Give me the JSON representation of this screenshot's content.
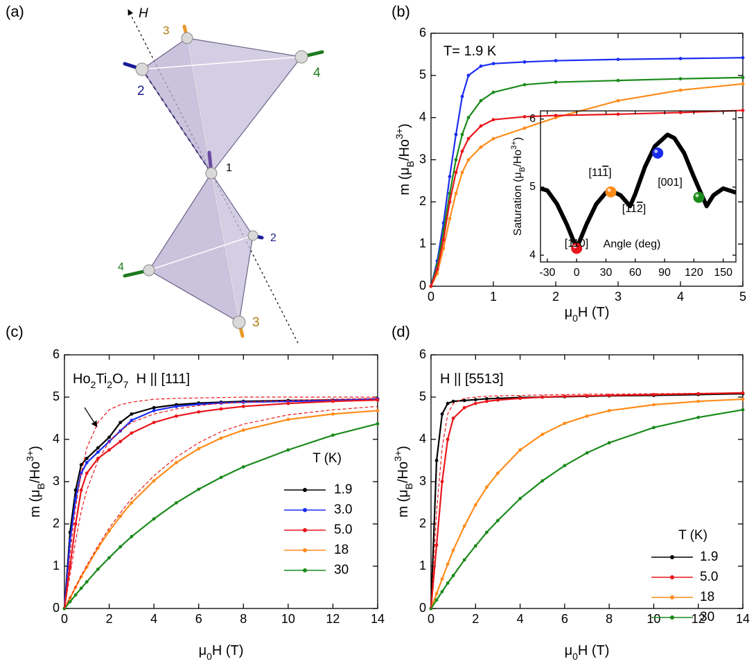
{
  "diagram": {
    "panel_label": "(a)",
    "field_label": "H",
    "site_labels": [
      "3",
      "2",
      "4",
      "1",
      "2",
      "4",
      "3"
    ]
  },
  "chart_data": [
    {
      "type": "line",
      "panel_label": "(b)",
      "annotation": [
        {
          "text": "T= 1.9 K"
        }
      ],
      "xlabel": [
        {
          "text": "μ"
        },
        {
          "text": "0",
          "sub": true
        },
        {
          "text": "H (T)"
        }
      ],
      "ylabel": [
        {
          "text": "m (μ"
        },
        {
          "text": "B",
          "sub": true
        },
        {
          "text": "/Ho"
        },
        {
          "text": "3+",
          "sup": true
        },
        {
          "text": ")"
        }
      ],
      "x": [
        0,
        0.1,
        0.2,
        0.3,
        0.4,
        0.5,
        0.6,
        0.8,
        1,
        1.5,
        2,
        3,
        4,
        5
      ],
      "xlim": [
        0,
        5
      ],
      "ylim": [
        0,
        6
      ],
      "xticks": [
        0,
        1,
        2,
        3,
        4,
        5
      ],
      "yticks": [
        0,
        1,
        2,
        3,
        4,
        5,
        6
      ],
      "markers": true,
      "series": [
        {
          "color": "#1b2cf0",
          "values": [
            0,
            0.6,
            1.5,
            2.6,
            3.6,
            4.5,
            5.0,
            5.22,
            5.28,
            5.32,
            5.35,
            5.38,
            5.4,
            5.42
          ]
        },
        {
          "color": "#1a8a1a",
          "values": [
            0,
            0.5,
            1.3,
            2.2,
            3.0,
            3.6,
            4.0,
            4.4,
            4.6,
            4.78,
            4.84,
            4.88,
            4.92,
            4.95
          ]
        },
        {
          "color": "#ff8c1a",
          "values": [
            0,
            0.3,
            0.9,
            1.6,
            2.2,
            2.7,
            3.0,
            3.3,
            3.5,
            3.75,
            4.0,
            4.4,
            4.65,
            4.8
          ]
        },
        {
          "color": "#e8161b",
          "values": [
            0,
            0.4,
            1.1,
            2.0,
            2.7,
            3.2,
            3.5,
            3.8,
            3.95,
            4.02,
            4.05,
            4.08,
            4.12,
            4.17
          ]
        }
      ]
    },
    {
      "type": "line",
      "inset": true,
      "xlabel": [
        {
          "text": "Angle (deg)"
        }
      ],
      "ylabel": [
        {
          "text": "Saturation (μ"
        },
        {
          "text": "B",
          "sub": true
        },
        {
          "text": "/Ho"
        },
        {
          "text": "3+",
          "sup": true
        },
        {
          "text": ")"
        }
      ],
      "x": [
        -37,
        -30,
        -20,
        -10,
        0,
        10,
        20,
        30,
        35,
        45,
        54.7,
        60,
        70,
        80,
        93,
        100,
        110,
        120,
        133,
        140,
        150,
        163
      ],
      "xlim": [
        -37,
        163
      ],
      "ylim": [
        3.9,
        6.12
      ],
      "xticks": [
        -30,
        0,
        30,
        60,
        90,
        120,
        150
      ],
      "yticks": [
        4,
        5,
        6
      ],
      "markers": false,
      "series": [
        {
          "color": "#000000",
          "values": [
            4.98,
            4.95,
            4.75,
            4.45,
            4.1,
            4.45,
            4.75,
            4.92,
            4.95,
            4.88,
            4.72,
            4.9,
            5.3,
            5.6,
            5.77,
            5.72,
            5.5,
            5.15,
            4.72,
            4.88,
            4.98,
            4.92
          ]
        }
      ],
      "points": {
        "x": [
          0,
          35,
          83,
          125
        ],
        "values": [
          4.1,
          4.93,
          5.5,
          4.85
        ],
        "colors": [
          "#e8161b",
          "#ff8c1a",
          "#1b2cf0",
          "#1a8a1a"
        ],
        "labels": [
          [
            {
              "text": "[110]"
            }
          ],
          [
            {
              "text": "[11"
            },
            {
              "text": "1",
              "overline": true
            },
            {
              "text": "]"
            }
          ],
          [
            {
              "text": "[001]"
            }
          ],
          [
            {
              "text": "[11"
            },
            {
              "text": "2",
              "overline": true
            },
            {
              "text": "]"
            }
          ]
        ]
      }
    },
    {
      "type": "line",
      "panel_label": "(c)",
      "annotation": [
        {
          "text": "Ho"
        },
        {
          "text": "2",
          "sub": true
        },
        {
          "text": "Ti"
        },
        {
          "text": "2",
          "sub": true
        },
        {
          "text": "O"
        },
        {
          "text": "7",
          "sub": true
        },
        {
          "text": "  H || [111]"
        }
      ],
      "xlabel": [
        {
          "text": "μ"
        },
        {
          "text": "0",
          "sub": true
        },
        {
          "text": "H (T)"
        }
      ],
      "ylabel": [
        {
          "text": "m (μ"
        },
        {
          "text": "B",
          "sub": true
        },
        {
          "text": "/Ho"
        },
        {
          "text": "3+",
          "sup": true
        },
        {
          "text": ")"
        }
      ],
      "x": [
        0,
        0.25,
        0.5,
        0.75,
        1,
        1.5,
        2,
        2.5,
        3,
        4,
        5,
        6,
        7,
        8,
        10,
        12,
        14
      ],
      "xlim": [
        0,
        14
      ],
      "ylim": [
        0,
        6
      ],
      "xticks": [
        0,
        2,
        4,
        6,
        8,
        10,
        12,
        14
      ],
      "yticks": [
        0,
        1,
        2,
        3,
        4,
        5,
        6
      ],
      "markers": true,
      "legend_title": "T (K)",
      "legend": "lower right",
      "series": [
        {
          "name": "1.9",
          "color": "#000000",
          "values": [
            0,
            1.8,
            2.8,
            3.4,
            3.55,
            3.8,
            4.05,
            4.4,
            4.6,
            4.75,
            4.82,
            4.86,
            4.88,
            4.9,
            4.92,
            4.93,
            4.95
          ]
        },
        {
          "name": "3.0",
          "color": "#1b2cf0",
          "values": [
            0,
            1.6,
            2.6,
            3.2,
            3.45,
            3.7,
            3.95,
            4.2,
            4.45,
            4.68,
            4.78,
            4.83,
            4.86,
            4.88,
            4.9,
            4.92,
            4.96
          ]
        },
        {
          "name": "5.0",
          "color": "#e8161b",
          "values": [
            0,
            1.0,
            2.0,
            2.8,
            3.2,
            3.55,
            3.75,
            3.95,
            4.15,
            4.4,
            4.55,
            4.65,
            4.72,
            4.78,
            4.85,
            4.9,
            4.93
          ]
        },
        {
          "name": "18",
          "color": "#ff8c1a",
          "values": [
            0,
            0.25,
            0.5,
            0.75,
            0.98,
            1.43,
            1.83,
            2.18,
            2.5,
            3.02,
            3.45,
            3.78,
            4.03,
            4.22,
            4.47,
            4.6,
            4.68
          ]
        },
        {
          "name": "30",
          "color": "#1a8a1a",
          "values": [
            0,
            0.16,
            0.32,
            0.48,
            0.63,
            0.93,
            1.2,
            1.46,
            1.7,
            2.12,
            2.5,
            2.82,
            3.1,
            3.35,
            3.75,
            4.1,
            4.37
          ]
        },
        {
          "color": "#e8161b",
          "dashed": true,
          "values": [
            0,
            1.3,
            2.4,
            3.2,
            3.8,
            4.4,
            4.7,
            4.82,
            4.88,
            4.95,
            4.97,
            4.98,
            4.99,
            5,
            5,
            5,
            5
          ]
        },
        {
          "color": "#e8161b",
          "dashed": true,
          "values": [
            0,
            0.8,
            1.6,
            2.3,
            2.8,
            3.5,
            3.95,
            4.2,
            4.4,
            4.6,
            4.72,
            4.8,
            4.85,
            4.88,
            4.92,
            4.95,
            4.97
          ]
        },
        {
          "color": "#e8161b",
          "dashed": true,
          "values": [
            0,
            0.26,
            0.52,
            0.78,
            1.02,
            1.48,
            1.9,
            2.26,
            2.6,
            3.14,
            3.58,
            3.92,
            4.18,
            4.36,
            4.58,
            4.7,
            4.78
          ]
        }
      ]
    },
    {
      "type": "line",
      "panel_label": "(d)",
      "annotation": [
        {
          "text": "H || [5513]"
        }
      ],
      "xlabel": [
        {
          "text": "μ"
        },
        {
          "text": "0",
          "sub": true
        },
        {
          "text": "H (T)"
        }
      ],
      "ylabel": [
        {
          "text": "m (μ"
        },
        {
          "text": "B",
          "sub": true
        },
        {
          "text": "/Ho"
        },
        {
          "text": "3+",
          "sup": true
        },
        {
          "text": ")"
        }
      ],
      "x": [
        0,
        0.25,
        0.5,
        0.75,
        1,
        1.5,
        2,
        2.5,
        3,
        4,
        5,
        6,
        7,
        8,
        10,
        12,
        14
      ],
      "xlim": [
        0,
        14
      ],
      "ylim": [
        0,
        6
      ],
      "xticks": [
        0,
        2,
        4,
        6,
        8,
        10,
        12,
        14
      ],
      "yticks": [
        0,
        1,
        2,
        3,
        4,
        5,
        6
      ],
      "markers": true,
      "legend_title": "T (K)",
      "legend": "lower right",
      "series": [
        {
          "name": "1.9",
          "color": "#000000",
          "values": [
            0,
            3.5,
            4.6,
            4.85,
            4.9,
            4.92,
            4.94,
            4.96,
            4.97,
            4.99,
            5.0,
            5.01,
            5.02,
            5.03,
            5.04,
            5.06,
            5.08
          ]
        },
        {
          "name": "5.0",
          "color": "#e8161b",
          "values": [
            0,
            1.5,
            3.0,
            4.0,
            4.5,
            4.75,
            4.85,
            4.9,
            4.93,
            4.97,
            5.0,
            5.02,
            5.03,
            5.04,
            5.06,
            5.08,
            5.1
          ]
        },
        {
          "name": "18",
          "color": "#ff8c1a",
          "values": [
            0,
            0.35,
            0.7,
            1.05,
            1.38,
            1.95,
            2.45,
            2.87,
            3.2,
            3.75,
            4.12,
            4.38,
            4.55,
            4.68,
            4.82,
            4.9,
            4.95
          ]
        },
        {
          "name": "30",
          "color": "#1a8a1a",
          "values": [
            0,
            0.2,
            0.4,
            0.6,
            0.78,
            1.15,
            1.48,
            1.8,
            2.08,
            2.6,
            3.02,
            3.38,
            3.68,
            3.92,
            4.28,
            4.52,
            4.7
          ]
        },
        {
          "color": "#e8161b",
          "dashed": true,
          "values": [
            0,
            2.3,
            3.8,
            4.6,
            4.85,
            4.97,
            5.0,
            5.02,
            5.03,
            5.04,
            5.05,
            5.06,
            5.07,
            5.07,
            5.08,
            5.09,
            5.1
          ]
        }
      ]
    }
  ]
}
